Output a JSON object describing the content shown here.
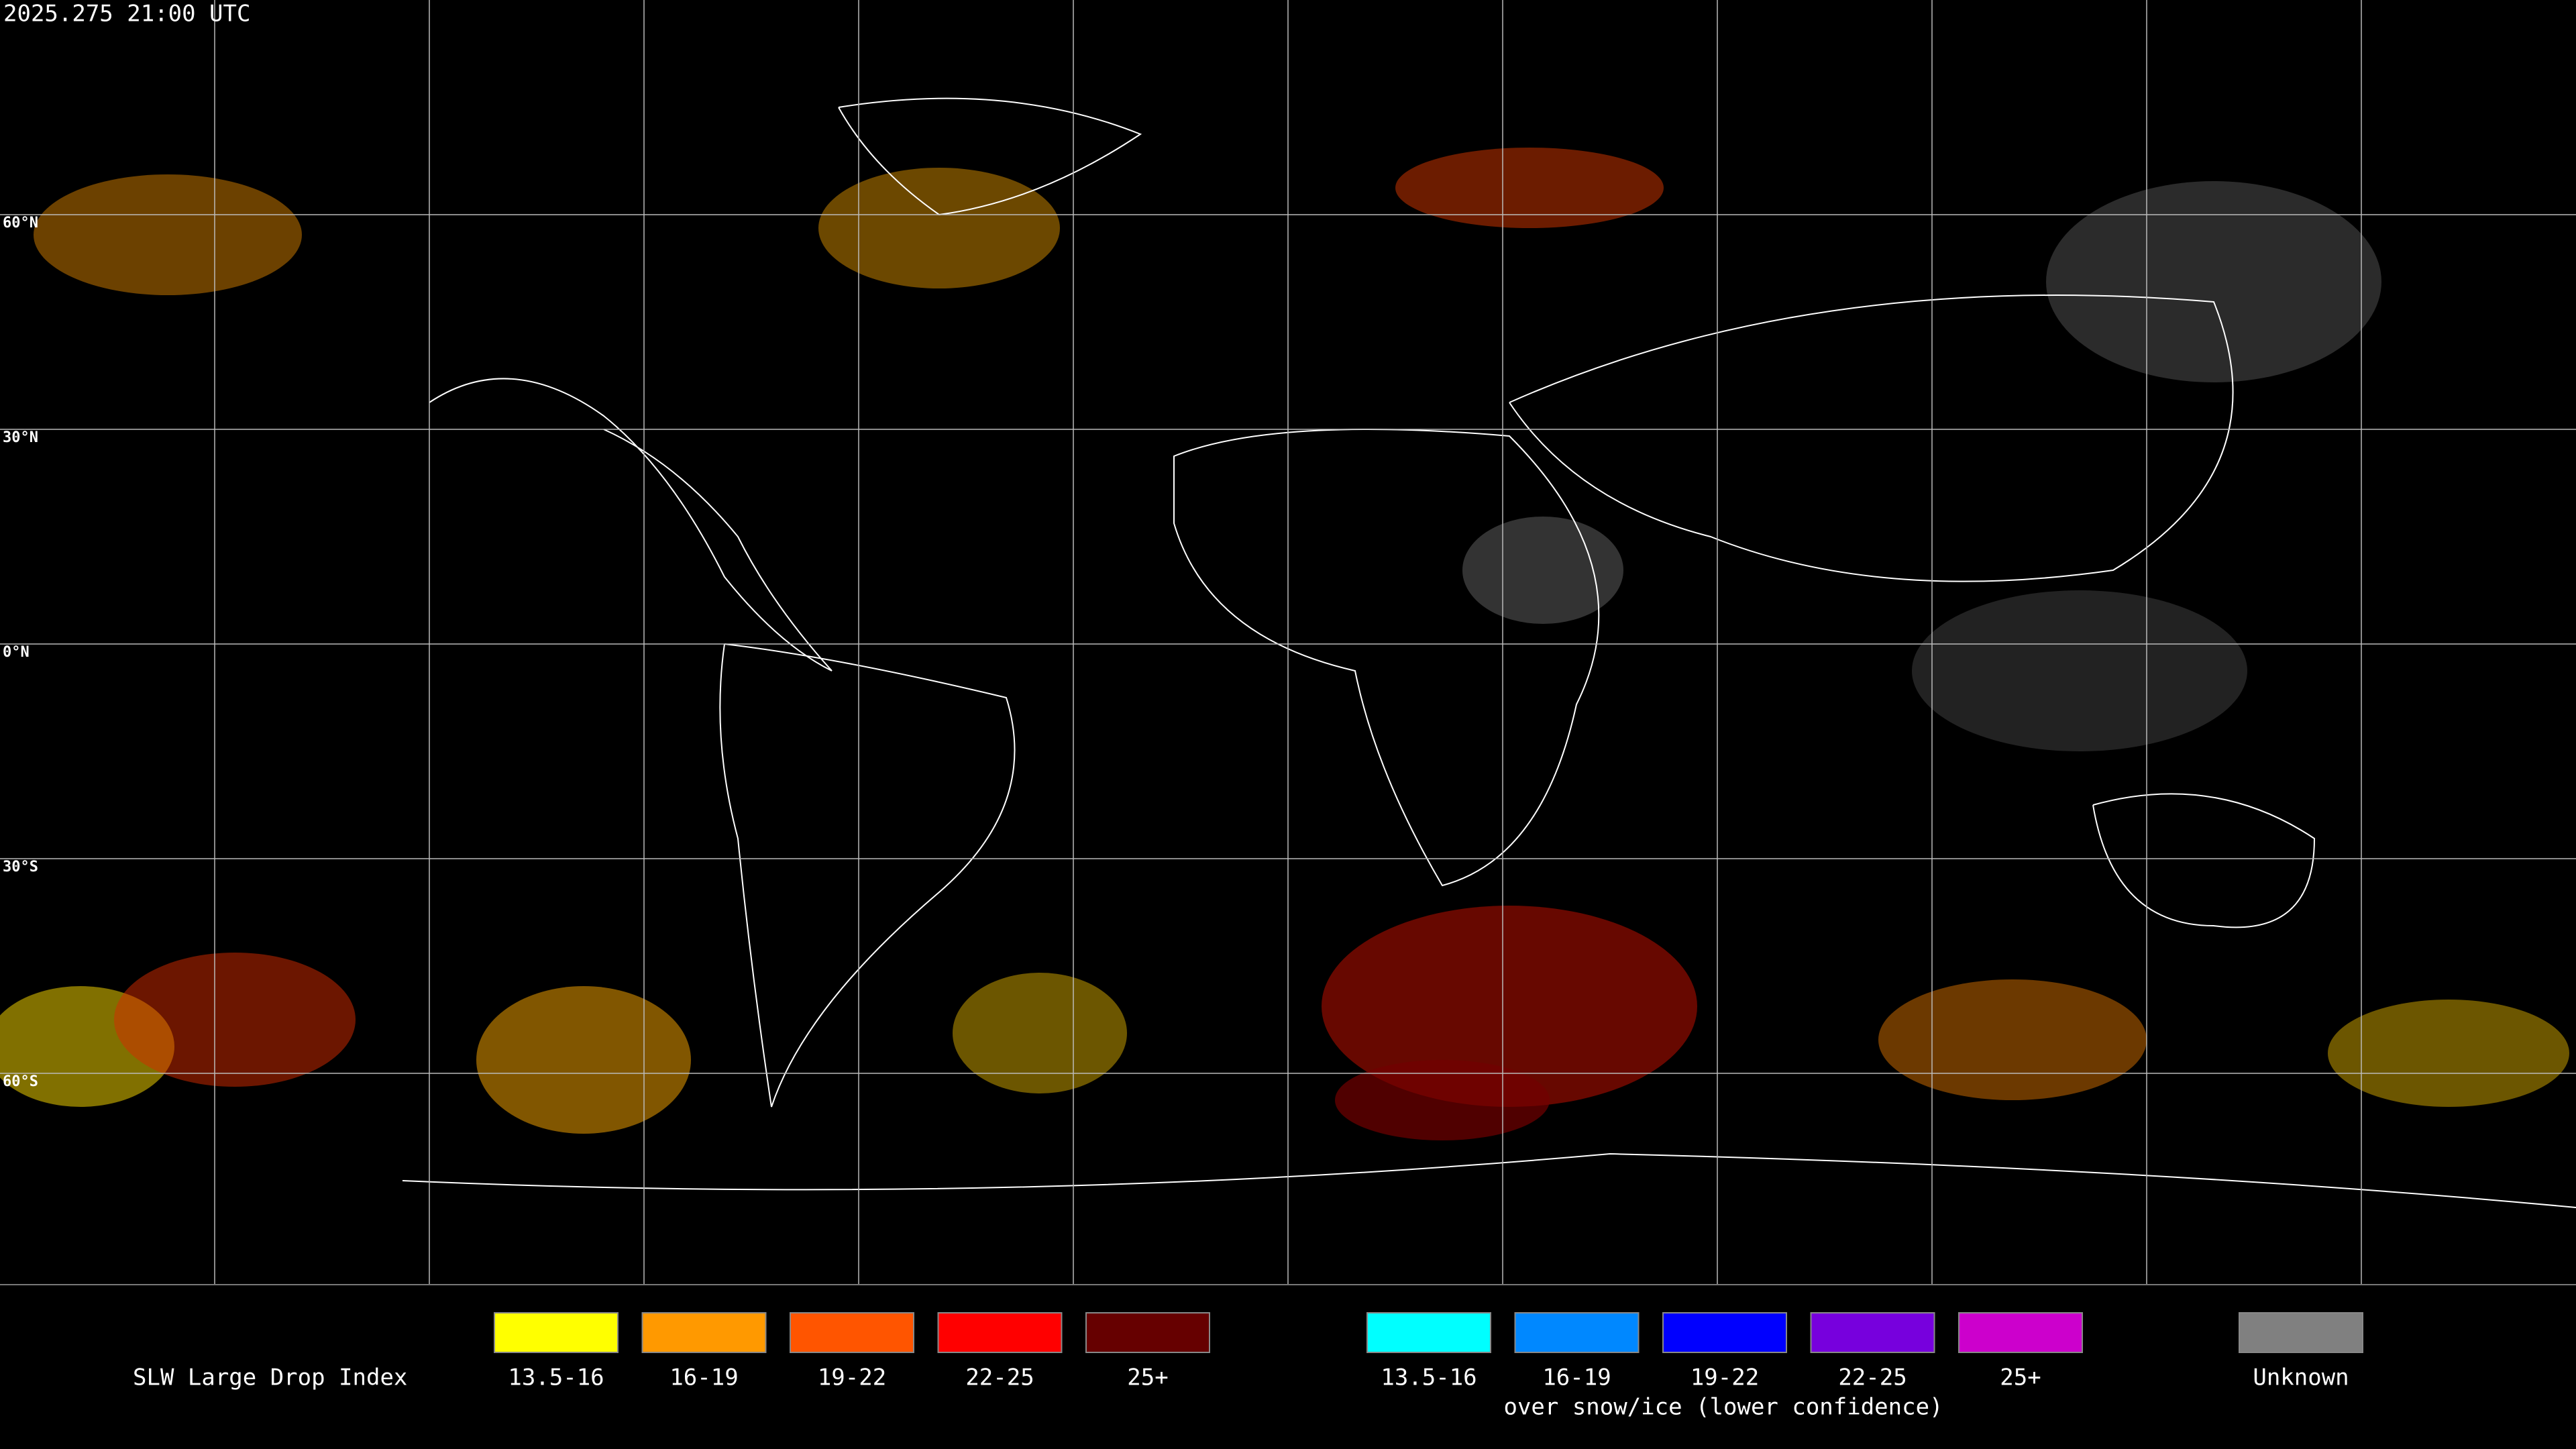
{
  "header": {
    "timestamp": "2025.275 21:00 UTC"
  },
  "grid": {
    "lat_labels": [
      "60°N",
      "30°N",
      "0°N",
      "30°S",
      "60°S"
    ]
  },
  "legend": {
    "title": "SLW Large Drop Index",
    "main": [
      {
        "label": "13.5-16",
        "color": "#ffff00"
      },
      {
        "label": "16-19",
        "color": "#ff9900"
      },
      {
        "label": "19-22",
        "color": "#ff5500"
      },
      {
        "label": "22-25",
        "color": "#ff0000"
      },
      {
        "label": "25+",
        "color": "#660000"
      }
    ],
    "snow": [
      {
        "label": "13.5-16",
        "color": "#00ffff"
      },
      {
        "label": "16-19",
        "color": "#0088ff"
      },
      {
        "label": "19-22",
        "color": "#0000ff"
      },
      {
        "label": "22-25",
        "color": "#7700dd"
      },
      {
        "label": "25+",
        "color": "#cc00cc"
      }
    ],
    "snow_note": "over snow/ice (lower confidence)",
    "unknown": {
      "label": "Unknown",
      "color": "#808080"
    }
  }
}
